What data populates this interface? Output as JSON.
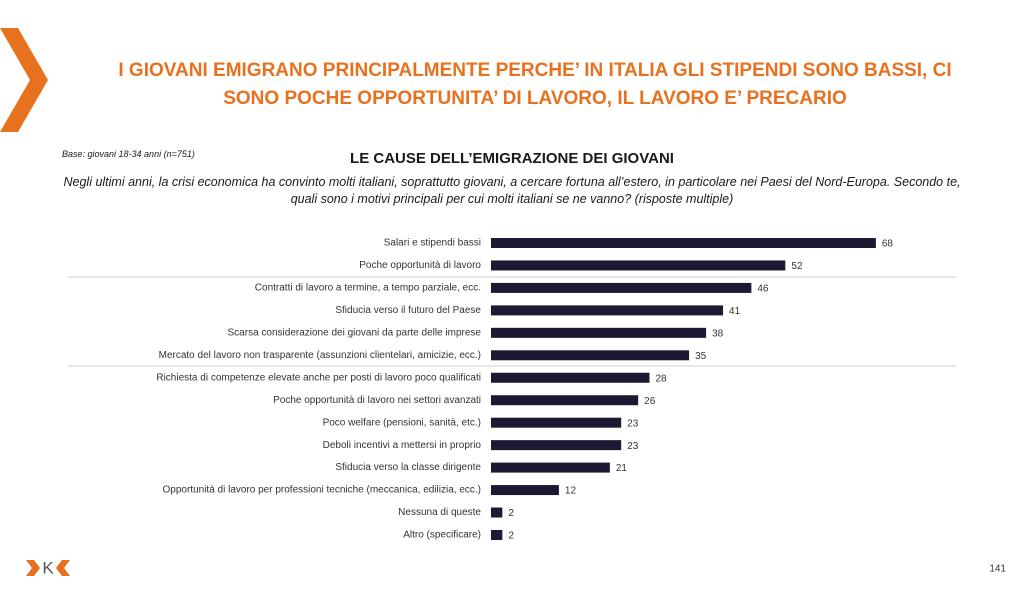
{
  "slide_title": "I GIOVANI EMIGRANO PRINCIPALMENTE PERCHE’ IN ITALIA GLI STIPENDI SONO BASSI, CI SONO POCHE OPPORTUNITA’ DI LAVORO, IL LAVORO E’ PRECARIO",
  "logo": "K",
  "page_number": "141",
  "chart_data": {
    "type": "bar",
    "orientation": "horizontal",
    "base_note": "Base: giovani 18-34 anni (n=751)",
    "title": "LE CAUSE DELL’EMIGRAZIONE DEI GIOVANI",
    "subtitle": "Negli ultimi anni, la crisi economica ha convinto molti italiani, soprattutto giovani, a cercare fortuna all’estero, in particolare nei Paesi del Nord-Europa. Secondo te, quali sono i motivi principali per cui molti italiani se ne vanno? (risposte multiple)",
    "categories": [
      "Salari e stipendi bassi",
      "Poche opportunità di lavoro",
      "Contratti di lavoro a termine, a tempo parziale, ecc.",
      "Sfiducia verso il futuro del Paese",
      "Scarsa considerazione dei giovani da parte delle imprese",
      "Mercato del lavoro non trasparente (assunzioni clientelari, amicizie, ecc.)",
      "Richiesta di competenze elevate anche per posti di lavoro poco qualificati",
      "Poche opportunità di lavoro nei settori avanzati",
      "Poco welfare (pensioni, sanità, etc.)",
      "Deboli incentivi a mettersi in proprio",
      "Sfiducia verso la classe dirigente",
      "Opportunità di lavoro per professioni tecniche (meccanica, edilizia, ecc.)",
      "Nessuna di queste",
      "Altro (specificare)"
    ],
    "values": [
      68,
      52,
      46,
      41,
      38,
      35,
      28,
      26,
      23,
      23,
      21,
      12,
      2,
      2
    ],
    "color": "#1c1a33"
  }
}
